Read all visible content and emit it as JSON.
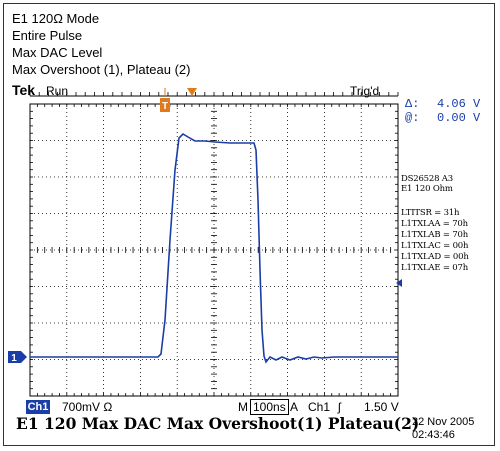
{
  "header": {
    "line1": "E1 120Ω Mode",
    "line2": "Entire Pulse",
    "line3": "Max DAC Level",
    "line4": "Max Overshoot (1), Plateau (2)"
  },
  "status": {
    "brand": "Tek",
    "run": "Run",
    "trig": "Trig'd"
  },
  "cursors": {
    "delta_label": "Δ:",
    "delta_value": "4.06 V",
    "at_label": "@:",
    "at_value": "0.00 V"
  },
  "info": {
    "device": "DS26528 A3",
    "mode": "E1 120 Ohm",
    "regs": [
      "LTITSR = 31h",
      "L1TXLAA = 70h",
      "L1TXLAB = 70h",
      "L1TXLAC = 00h",
      "L1TXLAD = 00h",
      "L1TXLAE = 07h"
    ]
  },
  "bottom": {
    "ch1_label": "Ch1",
    "ch1_scale": "700mV Ω",
    "m_label": "M",
    "timebase": "100ns",
    "a_label": "A",
    "trig_ch": "Ch1",
    "trig_slope": "ʃ",
    "trig_level": "1.50 V"
  },
  "caption": "E1 120 Max DAC Max Overshoot(1) Plateau(2)",
  "date": "22 Nov 2005",
  "time": "02:43:46",
  "markers": {
    "trigger_pos": "T",
    "cursor_one": "1"
  },
  "colors": {
    "trace": "#1a3ea8",
    "marker": "#e07a1a",
    "grid": "#000000"
  }
}
